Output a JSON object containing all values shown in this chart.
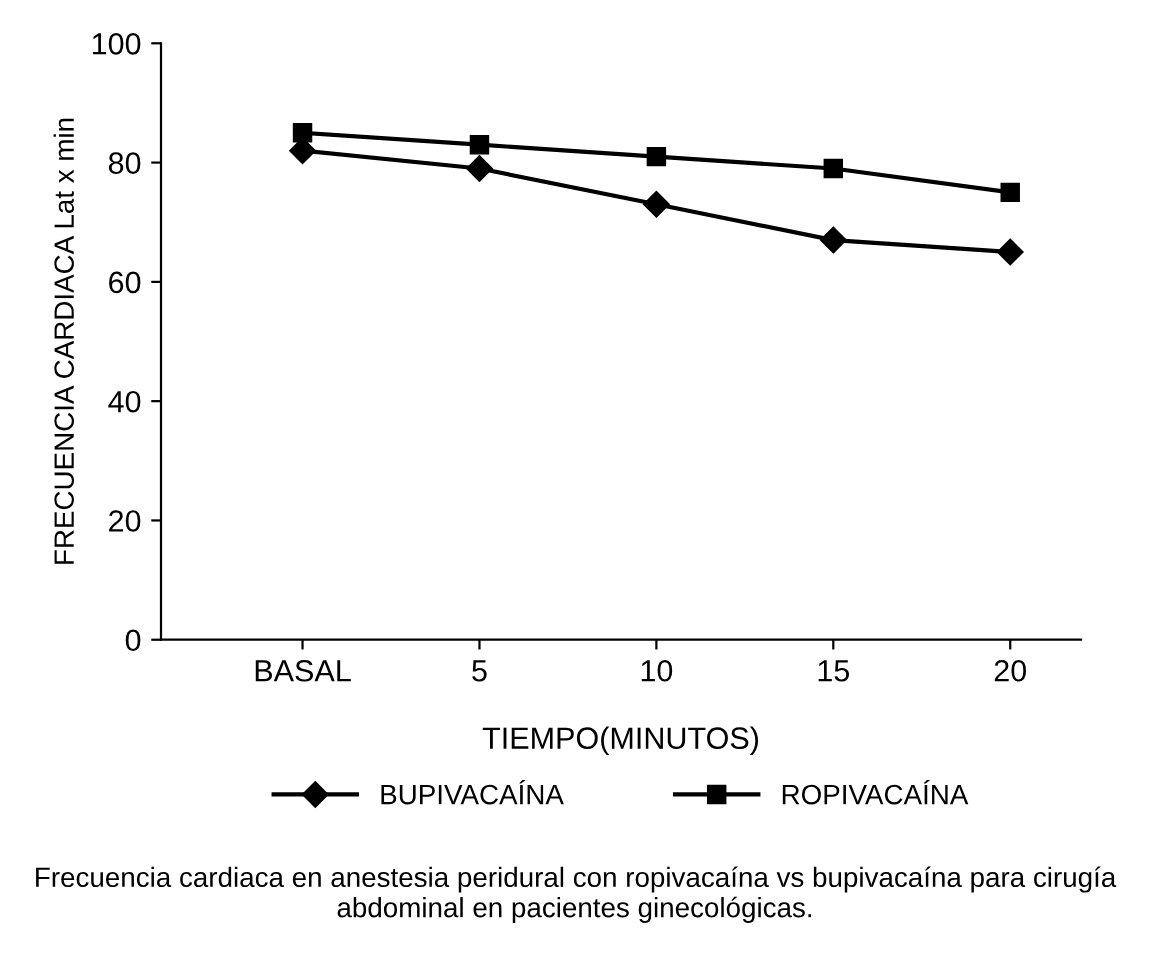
{
  "chart_data": {
    "type": "line",
    "xlabel": "TIEMPO(MINUTOS)",
    "ylabel": "FRECUENCIA CARDIACA Lat x min",
    "categories": [
      "BASAL",
      "5",
      "10",
      "15",
      "20"
    ],
    "series": [
      {
        "name": "BUPIVACAÍNA",
        "color": "#000000",
        "values": [
          82,
          79,
          73,
          67,
          65
        ]
      },
      {
        "name": "ROPIVACAÍNA",
        "color": "#000000",
        "marker": "square",
        "values": [
          85,
          83,
          81,
          79,
          75
        ]
      }
    ],
    "ylim": [
      0,
      100
    ],
    "yticks": [
      0,
      20,
      40,
      60,
      80,
      100
    ],
    "grid": false,
    "marker": "diamond",
    "legend": "bottom",
    "line_style": "solid",
    "annotations": [
      "Frecuencia cardiaca en anestesia peridural con ropivacaína vs bupivacaína para cirugía abdominal en pacientes ginecológicas."
    ]
  }
}
